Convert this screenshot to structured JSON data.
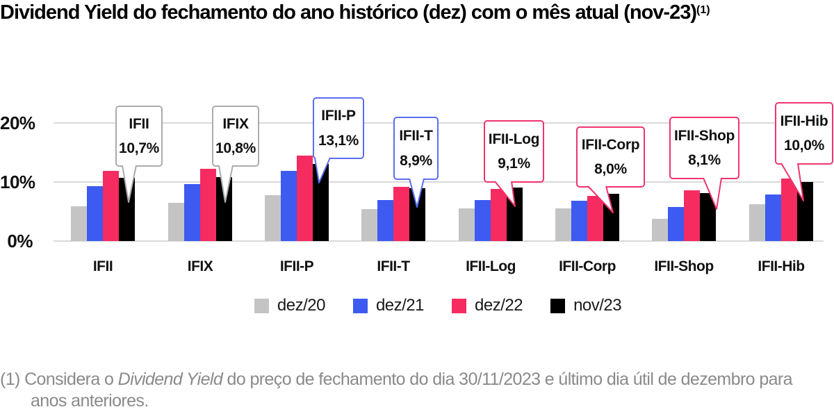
{
  "title": {
    "text": "Dividend Yield do fechamento do ano histórico (dez) com o mês atual (nov-23)",
    "footnote_ref": "(1)"
  },
  "chart_data": {
    "type": "bar",
    "title": "Dividend Yield do fechamento do ano histórico (dez) com o mês atual (nov-23) (1)",
    "categories": [
      "IFII",
      "IFIX",
      "IFII-P",
      "IFII-T",
      "IFII-Log",
      "IFII-Corp",
      "IFII-Shop",
      "IFII-Hib"
    ],
    "series": [
      {
        "name": "dez/20",
        "color": "#c4c4c4",
        "values": [
          5.9,
          6.5,
          7.8,
          5.4,
          5.5,
          5.5,
          3.8,
          6.2
        ]
      },
      {
        "name": "dez/21",
        "color": "#3d5af1",
        "values": [
          9.3,
          9.7,
          11.9,
          7.0,
          6.9,
          6.8,
          5.8,
          7.9
        ]
      },
      {
        "name": "dez/22",
        "color": "#f62b5f",
        "values": [
          11.9,
          12.2,
          14.5,
          9.2,
          8.8,
          7.7,
          8.6,
          10.6
        ]
      },
      {
        "name": "nov/23",
        "color": "#000000",
        "values": [
          10.7,
          10.8,
          13.1,
          8.9,
          9.1,
          8.0,
          8.1,
          10.0
        ]
      }
    ],
    "ylim": [
      0,
      20
    ],
    "yticks": [
      {
        "label": "20%",
        "value": 20
      },
      {
        "label": "10%",
        "value": 10
      },
      {
        "label": "0%",
        "value": 0
      }
    ],
    "grid": "horizontal",
    "legend_position": "bottom",
    "annotations": [
      {
        "category": "IFII",
        "label": "IFII",
        "value_label": "10,7%",
        "accent": "#ababab"
      },
      {
        "category": "IFIX",
        "label": "IFIX",
        "value_label": "10,8%",
        "accent": "#ababab"
      },
      {
        "category": "IFII-P",
        "label": "IFII-P",
        "value_label": "13,1%",
        "accent": "#5b6ef0"
      },
      {
        "category": "IFII-T",
        "label": "IFII-T",
        "value_label": "8,9%",
        "accent": "#5b6ef0"
      },
      {
        "category": "IFII-Log",
        "label": "IFII-Log",
        "value_label": "9,1%",
        "accent": "#f0336e"
      },
      {
        "category": "IFII-Corp",
        "label": "IFII-Corp",
        "value_label": "8,0%",
        "accent": "#f0336e"
      },
      {
        "category": "IFII-Shop",
        "label": "IFII-Shop",
        "value_label": "8,1%",
        "accent": "#f0336e"
      },
      {
        "category": "IFII-Hib",
        "label": "IFII-Hib",
        "value_label": "10,0%",
        "accent": "#f0336e"
      }
    ]
  },
  "footnote": {
    "prefix": "(1) Considera o ",
    "italic": "Dividend Yield",
    "suffix": " do preço de fechamento do dia 30/11/2023 e último dia  útil de dezembro para anos anteriores."
  }
}
